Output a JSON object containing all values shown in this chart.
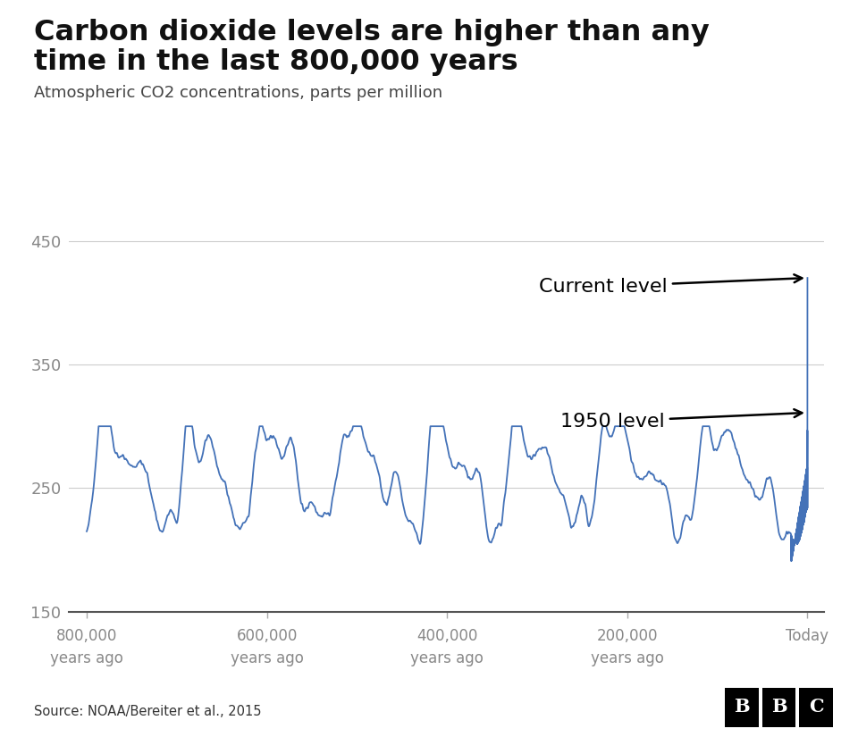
{
  "title_line1": "Carbon dioxide levels are higher than any",
  "title_line2": "time in the last 800,000 years",
  "subtitle": "Atmospheric CO2 concentrations, parts per million",
  "source": "Source: NOAA/Bereiter et al., 2015",
  "line_color": "#4472b8",
  "bg_color": "#ffffff",
  "grid_color": "#cccccc",
  "tick_label_color": "#888888",
  "title_color": "#111111",
  "subtitle_color": "#444444",
  "annotation_current": "Current level",
  "annotation_1950": "1950 level",
  "ylim": [
    150,
    460
  ],
  "yticks": [
    150,
    250,
    350,
    450
  ],
  "xtick_positions": [
    -800000,
    -600000,
    -400000,
    -200000,
    0
  ],
  "xtick_labels": [
    "800,000\nyears ago",
    "600,000\nyears ago",
    "400,000\nyears ago",
    "200,000\nyears ago",
    "Today"
  ],
  "current_co2": 420,
  "level_1950": 311,
  "xlim_left": -820000,
  "xlim_right": 18000
}
